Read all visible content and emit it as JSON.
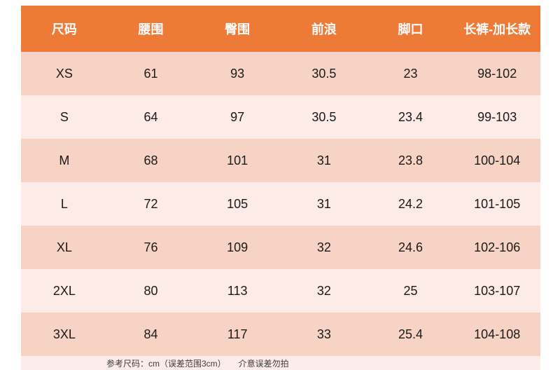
{
  "chart_data": {
    "type": "table",
    "title": "",
    "columns": [
      "尺码",
      "腰围",
      "臀围",
      "前浪",
      "脚口",
      "长裤-加长款"
    ],
    "rows": [
      [
        "XS",
        "61",
        "93",
        "30.5",
        "23",
        "98-102"
      ],
      [
        "S",
        "64",
        "97",
        "30.5",
        "23.4",
        "99-103"
      ],
      [
        "M",
        "68",
        "101",
        "31",
        "23.8",
        "100-104"
      ],
      [
        "L",
        "72",
        "105",
        "31",
        "24.2",
        "101-105"
      ],
      [
        "XL",
        "76",
        "109",
        "32",
        "24.6",
        "102-106"
      ],
      [
        "2XL",
        "80",
        "113",
        "32",
        "25",
        "103-107"
      ],
      [
        "3XL",
        "84",
        "117",
        "33",
        "25.4",
        "104-108"
      ]
    ],
    "footnote": "参考尺码：cm（误差范围3cm）　　介意误差勿拍",
    "layout": {
      "unit": "cm",
      "row_striping": "alternating"
    }
  },
  "colors": {
    "header_bg": "#ee7a38",
    "header_text": "#ffffff",
    "row_dark_bg": "#f7d3c6",
    "row_light_bg": "#fcebe7",
    "footer_bg": "#fdedea",
    "body_text": "#1a1a1a"
  }
}
